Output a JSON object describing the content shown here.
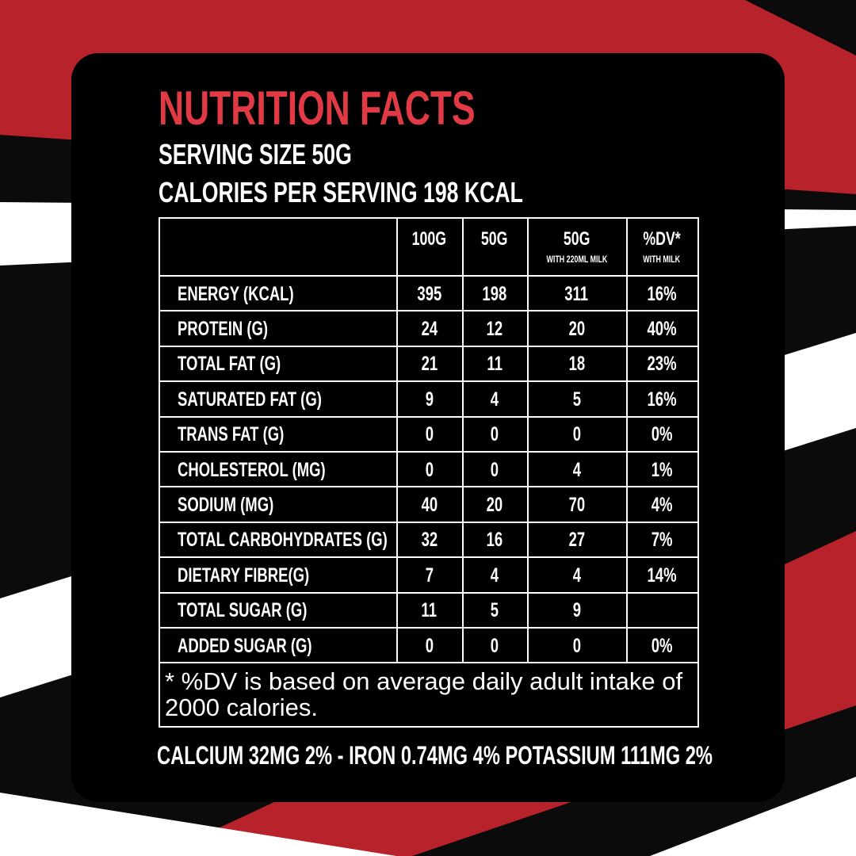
{
  "title": "NUTRITION FACTS",
  "serving_size": "SERVING SIZE 50G",
  "calories": "CALORIES PER SERVING 198 KCAL",
  "table": {
    "header": [
      {
        "label": "100G"
      },
      {
        "label": "50G"
      },
      {
        "label": "50G",
        "sublabel": "WITH 220ML MILK"
      },
      {
        "label": "%DV*",
        "sublabel": "WITH MILK"
      }
    ],
    "rows": [
      [
        "ENERGY (KCAL)",
        "395",
        "198",
        "311",
        "16%"
      ],
      [
        "PROTEIN (G)",
        "24",
        "12",
        "20",
        "40%"
      ],
      [
        "TOTAL FAT (G)",
        "21",
        "11",
        "18",
        "23%"
      ],
      [
        "SATURATED FAT (G)",
        "9",
        "4",
        "5",
        "16%"
      ],
      [
        "TRANS FAT (G)",
        "0",
        "0",
        "0",
        "0%"
      ],
      [
        "CHOLESTEROL (MG)",
        "0",
        "0",
        "4",
        "1%"
      ],
      [
        "SODIUM (MG)",
        "40",
        "20",
        "70",
        "4%"
      ],
      [
        "TOTAL CARBOHYDRATES (G)",
        "32",
        "16",
        "27",
        "7%"
      ],
      [
        "DIETARY FIBRE(G)",
        "7",
        "4",
        "4",
        "14%"
      ],
      [
        "TOTAL SUGAR (G)",
        "11",
        "5",
        "9"
      ],
      [
        "ADDED SUGAR (G)",
        "0",
        "0",
        "0",
        "0%"
      ]
    ],
    "footnote": "* %DV is based on average daily adult intake of 2000 calories."
  },
  "minerals": "CALCIUM 32MG 2% - IRON 0.74MG 4% POTASSIUM 111MG 2%"
}
